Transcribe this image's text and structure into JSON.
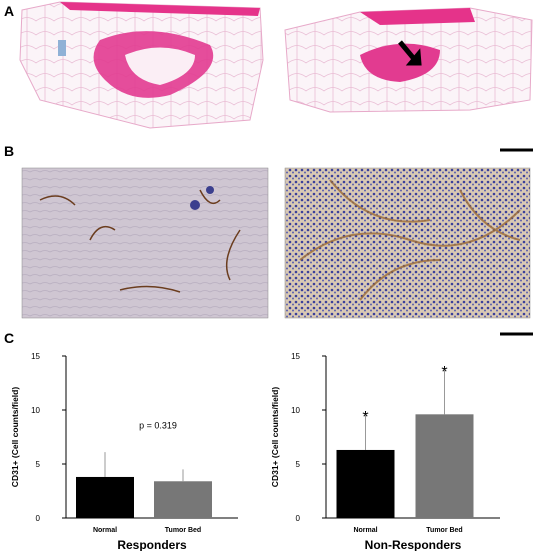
{
  "panel_labels": [
    "A",
    "B",
    "C"
  ],
  "chart_data": [
    {
      "type": "bar",
      "title": "Responders",
      "y_label": "CD31+ (Cell counts/field)",
      "categories": [
        "Normal",
        "Tumor Bed"
      ],
      "values": [
        3.8,
        3.4
      ],
      "errors": [
        2.3,
        1.1
      ],
      "colors": [
        "#000000",
        "#777777"
      ],
      "ylim": [
        0,
        15
      ],
      "yticks": [
        0,
        5,
        10,
        15
      ],
      "annotations": [
        "p = 0.319"
      ]
    },
    {
      "type": "bar",
      "title": "Non-Responders",
      "y_label": "CD31+ (Cell counts/field)",
      "categories": [
        "Normal",
        "Tumor Bed"
      ],
      "values": [
        6.3,
        9.6
      ],
      "errors": [
        3.5,
        4.4
      ],
      "colors": [
        "#000000",
        "#777777"
      ],
      "ylim": [
        0,
        15
      ],
      "yticks": [
        0,
        5,
        10,
        15
      ],
      "annotations": [
        "*",
        "*"
      ]
    }
  ]
}
